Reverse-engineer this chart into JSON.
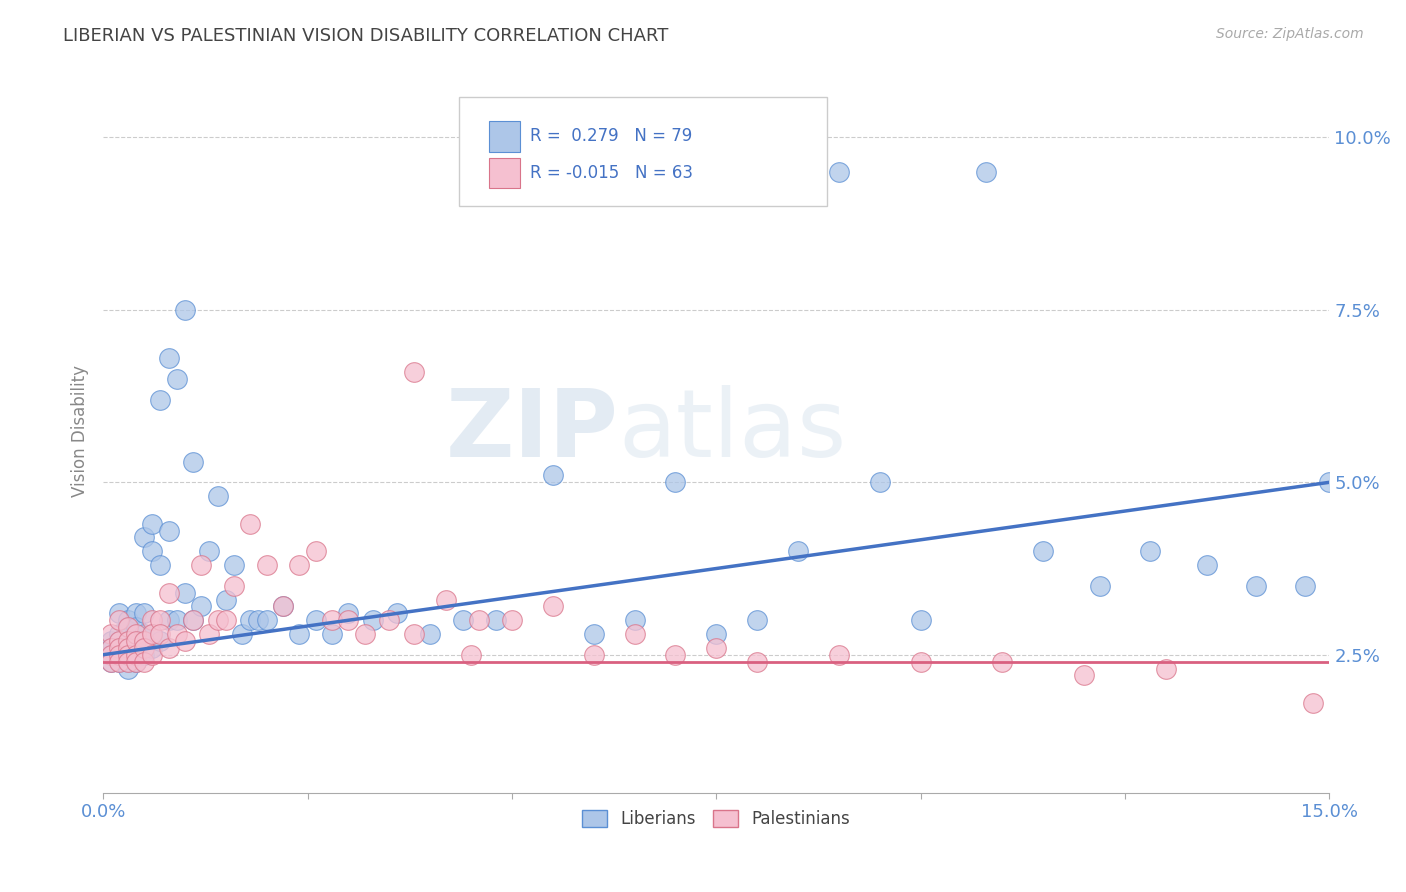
{
  "title": "LIBERIAN VS PALESTINIAN VISION DISABILITY CORRELATION CHART",
  "source": "Source: ZipAtlas.com",
  "ylabel": "Vision Disability",
  "xlim": [
    0.0,
    0.15
  ],
  "ylim": [
    0.005,
    0.11
  ],
  "ytick_vals": [
    0.025,
    0.05,
    0.075,
    0.1
  ],
  "ytick_labels": [
    "2.5%",
    "5.0%",
    "7.5%",
    "10.0%"
  ],
  "xtick_vals": [
    0.0,
    0.15
  ],
  "xtick_labels": [
    "0.0%",
    "15.0%"
  ],
  "liberian_R": 0.279,
  "liberian_N": 79,
  "palestinian_R": -0.015,
  "palestinian_N": 63,
  "liberian_color": "#adc6e8",
  "liberian_edge_color": "#5b8fd4",
  "liberian_line_color": "#4472c4",
  "palestinian_color": "#f5c0d0",
  "palestinian_edge_color": "#d9748a",
  "palestinian_line_color": "#d96080",
  "background_color": "#ffffff",
  "watermark_zip": "ZIP",
  "watermark_atlas": "atlas",
  "grid_color": "#cccccc",
  "title_color": "#444444",
  "tick_color": "#5b8fd4",
  "liberian_x": [
    0.001,
    0.001,
    0.001,
    0.001,
    0.002,
    0.002,
    0.002,
    0.002,
    0.002,
    0.002,
    0.003,
    0.003,
    0.003,
    0.003,
    0.003,
    0.003,
    0.003,
    0.004,
    0.004,
    0.004,
    0.004,
    0.004,
    0.005,
    0.005,
    0.005,
    0.005,
    0.006,
    0.006,
    0.006,
    0.006,
    0.007,
    0.007,
    0.007,
    0.008,
    0.008,
    0.008,
    0.009,
    0.009,
    0.01,
    0.01,
    0.011,
    0.011,
    0.012,
    0.013,
    0.014,
    0.015,
    0.016,
    0.017,
    0.018,
    0.019,
    0.02,
    0.022,
    0.024,
    0.026,
    0.028,
    0.03,
    0.033,
    0.036,
    0.04,
    0.044,
    0.048,
    0.055,
    0.06,
    0.065,
    0.07,
    0.075,
    0.08,
    0.085,
    0.09,
    0.095,
    0.1,
    0.108,
    0.115,
    0.122,
    0.128,
    0.135,
    0.141,
    0.147,
    0.15
  ],
  "liberian_y": [
    0.027,
    0.026,
    0.025,
    0.024,
    0.031,
    0.028,
    0.027,
    0.026,
    0.025,
    0.024,
    0.03,
    0.029,
    0.027,
    0.026,
    0.025,
    0.024,
    0.023,
    0.031,
    0.029,
    0.027,
    0.026,
    0.024,
    0.042,
    0.031,
    0.028,
    0.025,
    0.044,
    0.04,
    0.028,
    0.026,
    0.062,
    0.038,
    0.027,
    0.068,
    0.043,
    0.03,
    0.065,
    0.03,
    0.075,
    0.034,
    0.053,
    0.03,
    0.032,
    0.04,
    0.048,
    0.033,
    0.038,
    0.028,
    0.03,
    0.03,
    0.03,
    0.032,
    0.028,
    0.03,
    0.028,
    0.031,
    0.03,
    0.031,
    0.028,
    0.03,
    0.03,
    0.051,
    0.028,
    0.03,
    0.05,
    0.028,
    0.03,
    0.04,
    0.095,
    0.05,
    0.03,
    0.095,
    0.04,
    0.035,
    0.04,
    0.038,
    0.035,
    0.035,
    0.05
  ],
  "palestinian_x": [
    0.001,
    0.001,
    0.001,
    0.001,
    0.002,
    0.002,
    0.002,
    0.002,
    0.002,
    0.003,
    0.003,
    0.003,
    0.003,
    0.003,
    0.004,
    0.004,
    0.004,
    0.004,
    0.005,
    0.005,
    0.005,
    0.006,
    0.006,
    0.006,
    0.007,
    0.007,
    0.008,
    0.008,
    0.009,
    0.01,
    0.011,
    0.012,
    0.013,
    0.014,
    0.015,
    0.016,
    0.018,
    0.02,
    0.022,
    0.024,
    0.026,
    0.028,
    0.03,
    0.032,
    0.035,
    0.038,
    0.042,
    0.046,
    0.05,
    0.055,
    0.06,
    0.065,
    0.07,
    0.075,
    0.08,
    0.09,
    0.1,
    0.11,
    0.12,
    0.13,
    0.038,
    0.045,
    0.148
  ],
  "palestinian_y": [
    0.028,
    0.026,
    0.025,
    0.024,
    0.03,
    0.027,
    0.026,
    0.025,
    0.024,
    0.029,
    0.027,
    0.026,
    0.025,
    0.024,
    0.028,
    0.027,
    0.025,
    0.024,
    0.027,
    0.026,
    0.024,
    0.03,
    0.028,
    0.025,
    0.03,
    0.028,
    0.034,
    0.026,
    0.028,
    0.027,
    0.03,
    0.038,
    0.028,
    0.03,
    0.03,
    0.035,
    0.044,
    0.038,
    0.032,
    0.038,
    0.04,
    0.03,
    0.03,
    0.028,
    0.03,
    0.028,
    0.033,
    0.03,
    0.03,
    0.032,
    0.025,
    0.028,
    0.025,
    0.026,
    0.024,
    0.025,
    0.024,
    0.024,
    0.022,
    0.023,
    0.066,
    0.025,
    0.018
  ]
}
